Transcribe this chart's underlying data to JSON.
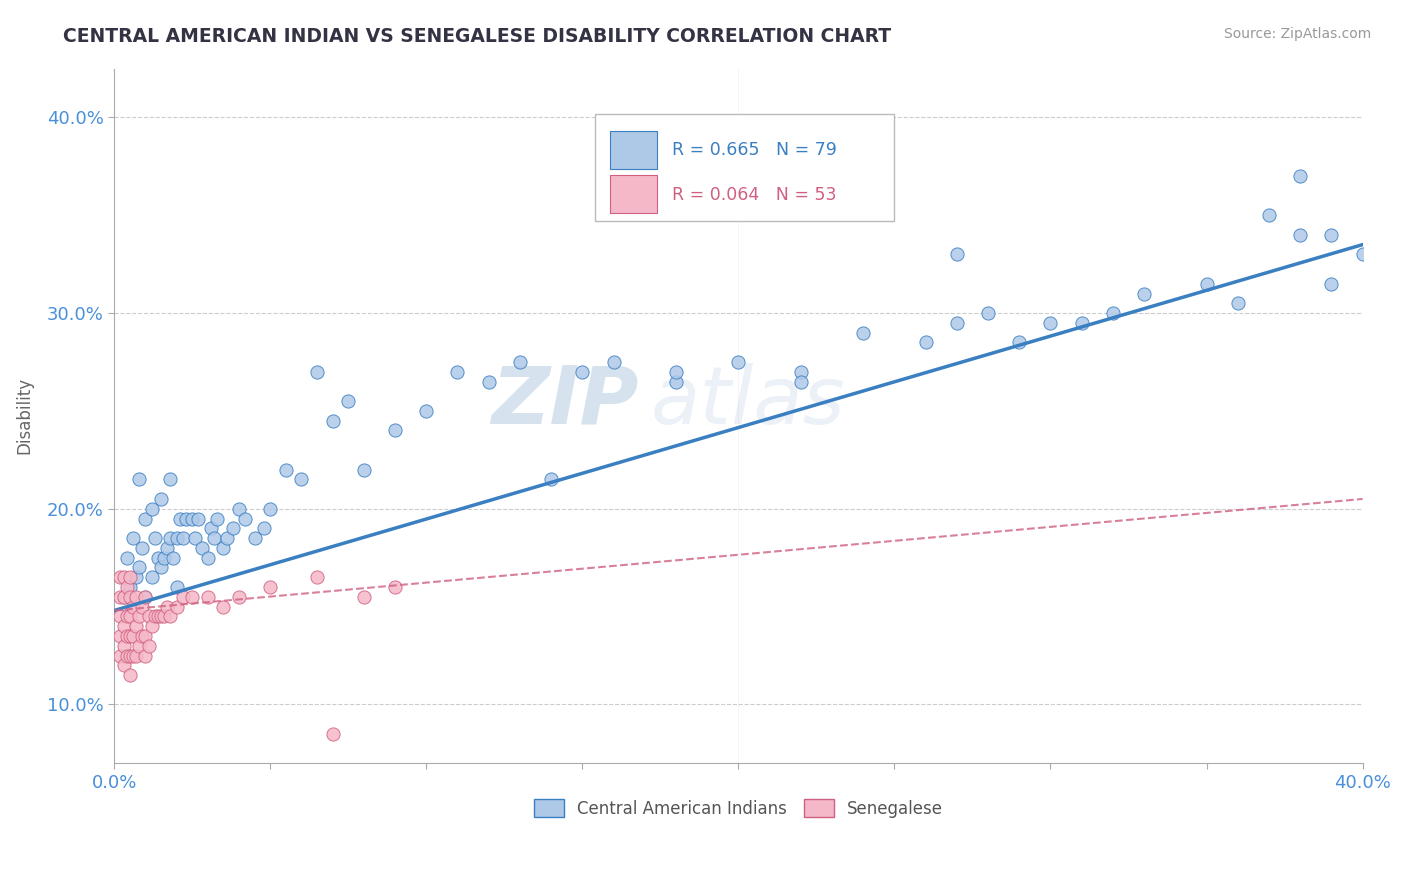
{
  "title": "CENTRAL AMERICAN INDIAN VS SENEGALESE DISABILITY CORRELATION CHART",
  "source": "Source: ZipAtlas.com",
  "ylabel": "Disability",
  "xlim": [
    0.0,
    0.4
  ],
  "ylim": [
    0.07,
    0.425
  ],
  "xticks": [
    0.0,
    0.05,
    0.1,
    0.15,
    0.2,
    0.25,
    0.3,
    0.35,
    0.4
  ],
  "xticklabels": [
    "0.0%",
    "",
    "",
    "",
    "",
    "",
    "",
    "",
    "40.0%"
  ],
  "yticks": [
    0.1,
    0.2,
    0.3,
    0.4
  ],
  "yticklabels": [
    "10.0%",
    "20.0%",
    "30.0%",
    "40.0%"
  ],
  "blue_R": 0.665,
  "blue_N": 79,
  "pink_R": 0.064,
  "pink_N": 53,
  "blue_color": "#aec8e8",
  "pink_color": "#f5b8c8",
  "blue_line_color": "#3a7fc1",
  "pink_line_color": "#d06080",
  "grid_color": "#cccccc",
  "title_color": "#333344",
  "axis_color": "#4a90d9",
  "watermark_zip": "ZIP",
  "watermark_atlas": "atlas",
  "blue_scatter_x": [
    0.003,
    0.004,
    0.005,
    0.006,
    0.007,
    0.008,
    0.008,
    0.009,
    0.01,
    0.01,
    0.012,
    0.012,
    0.013,
    0.014,
    0.015,
    0.015,
    0.016,
    0.017,
    0.018,
    0.018,
    0.019,
    0.02,
    0.02,
    0.021,
    0.022,
    0.023,
    0.025,
    0.026,
    0.027,
    0.028,
    0.03,
    0.031,
    0.032,
    0.033,
    0.035,
    0.036,
    0.038,
    0.04,
    0.042,
    0.045,
    0.048,
    0.05,
    0.055,
    0.06,
    0.065,
    0.07,
    0.075,
    0.08,
    0.09,
    0.1,
    0.11,
    0.12,
    0.13,
    0.14,
    0.15,
    0.16,
    0.18,
    0.2,
    0.22,
    0.24,
    0.26,
    0.27,
    0.28,
    0.29,
    0.3,
    0.31,
    0.32,
    0.33,
    0.35,
    0.36,
    0.37,
    0.38,
    0.38,
    0.39,
    0.39,
    0.4,
    0.27,
    0.22,
    0.18
  ],
  "blue_scatter_y": [
    0.155,
    0.175,
    0.16,
    0.185,
    0.165,
    0.17,
    0.215,
    0.18,
    0.155,
    0.195,
    0.165,
    0.2,
    0.185,
    0.175,
    0.17,
    0.205,
    0.175,
    0.18,
    0.185,
    0.215,
    0.175,
    0.16,
    0.185,
    0.195,
    0.185,
    0.195,
    0.195,
    0.185,
    0.195,
    0.18,
    0.175,
    0.19,
    0.185,
    0.195,
    0.18,
    0.185,
    0.19,
    0.2,
    0.195,
    0.185,
    0.19,
    0.2,
    0.22,
    0.215,
    0.27,
    0.245,
    0.255,
    0.22,
    0.24,
    0.25,
    0.27,
    0.265,
    0.275,
    0.215,
    0.27,
    0.275,
    0.265,
    0.275,
    0.27,
    0.29,
    0.285,
    0.295,
    0.3,
    0.285,
    0.295,
    0.295,
    0.3,
    0.31,
    0.315,
    0.305,
    0.35,
    0.34,
    0.37,
    0.315,
    0.34,
    0.33,
    0.33,
    0.265,
    0.27
  ],
  "pink_scatter_x": [
    0.002,
    0.002,
    0.002,
    0.002,
    0.002,
    0.003,
    0.003,
    0.003,
    0.003,
    0.003,
    0.004,
    0.004,
    0.004,
    0.004,
    0.005,
    0.005,
    0.005,
    0.005,
    0.005,
    0.005,
    0.006,
    0.006,
    0.006,
    0.007,
    0.007,
    0.007,
    0.008,
    0.008,
    0.009,
    0.009,
    0.01,
    0.01,
    0.01,
    0.011,
    0.011,
    0.012,
    0.013,
    0.014,
    0.015,
    0.016,
    0.017,
    0.018,
    0.02,
    0.022,
    0.025,
    0.03,
    0.035,
    0.04,
    0.05,
    0.065,
    0.07,
    0.08,
    0.09
  ],
  "pink_scatter_y": [
    0.125,
    0.135,
    0.145,
    0.155,
    0.165,
    0.12,
    0.13,
    0.14,
    0.155,
    0.165,
    0.125,
    0.135,
    0.145,
    0.16,
    0.115,
    0.125,
    0.135,
    0.145,
    0.155,
    0.165,
    0.125,
    0.135,
    0.15,
    0.125,
    0.14,
    0.155,
    0.13,
    0.145,
    0.135,
    0.15,
    0.125,
    0.135,
    0.155,
    0.13,
    0.145,
    0.14,
    0.145,
    0.145,
    0.145,
    0.145,
    0.15,
    0.145,
    0.15,
    0.155,
    0.155,
    0.155,
    0.15,
    0.155,
    0.16,
    0.165,
    0.085,
    0.155,
    0.16
  ],
  "blue_line_start_y": 0.148,
  "blue_line_end_y": 0.335,
  "pink_line_start_y": 0.148,
  "pink_line_end_y": 0.205
}
